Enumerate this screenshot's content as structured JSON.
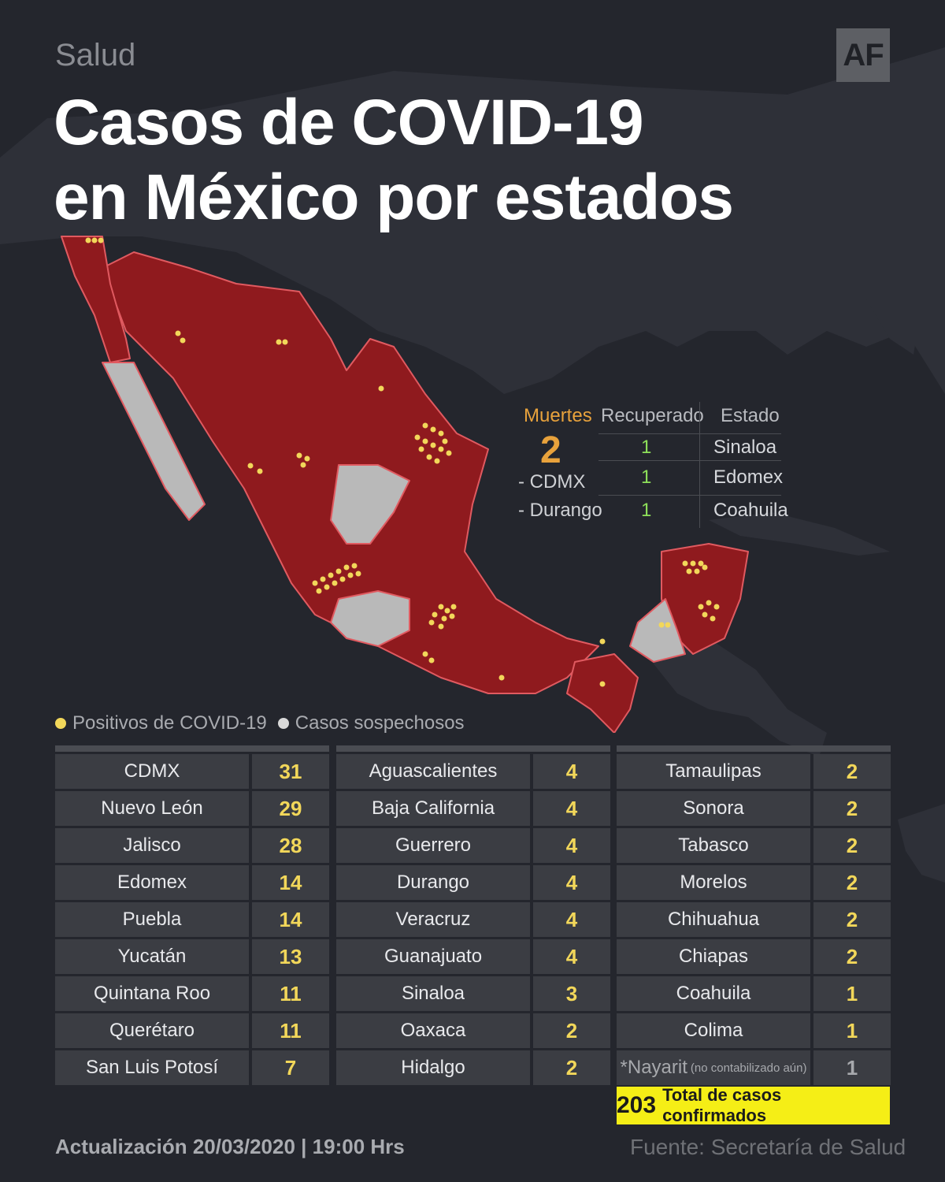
{
  "header": {
    "section": "Salud",
    "logo": "AF",
    "title_line1": "Casos de COVID-19",
    "title_line2": "en México por estados"
  },
  "colors": {
    "confirmed_state": "#8f1a1e",
    "suspected_state": "#b9b9b9",
    "positive_dot": "#f2d75a",
    "deaths_accent": "#e8a23c",
    "recovered": "#8ee05a",
    "total_highlight": "#f5ee16"
  },
  "deaths_panel": {
    "deaths_label": "Muertes",
    "deaths_count": "2",
    "recovered_label": "Recuperado",
    "state_label": "Estado",
    "death_places": [
      "- CDMX",
      "- Durango"
    ],
    "recovered_rows": [
      {
        "count": "1",
        "state": "Sinaloa"
      },
      {
        "count": "1",
        "state": "Edomex"
      },
      {
        "count": "1",
        "state": "Coahuila"
      }
    ]
  },
  "legend": {
    "positive": "Positivos de COVID-19",
    "suspected": "Casos sospechosos"
  },
  "table": {
    "col1": [
      {
        "state": "CDMX",
        "cases": "31"
      },
      {
        "state": "Nuevo León",
        "cases": "29"
      },
      {
        "state": "Jalisco",
        "cases": "28"
      },
      {
        "state": "Edomex",
        "cases": "14"
      },
      {
        "state": "Puebla",
        "cases": "14"
      },
      {
        "state": "Yucatán",
        "cases": "13"
      },
      {
        "state": "Quintana Roo",
        "cases": "11"
      },
      {
        "state": "Querétaro",
        "cases": "11"
      },
      {
        "state": "San Luis Potosí",
        "cases": "7"
      }
    ],
    "col2": [
      {
        "state": "Aguascalientes",
        "cases": "4"
      },
      {
        "state": "Baja California",
        "cases": "4"
      },
      {
        "state": "Guerrero",
        "cases": "4"
      },
      {
        "state": "Durango",
        "cases": "4"
      },
      {
        "state": "Veracruz",
        "cases": "4"
      },
      {
        "state": "Guanajuato",
        "cases": "4"
      },
      {
        "state": "Sinaloa",
        "cases": "3"
      },
      {
        "state": "Oaxaca",
        "cases": "2"
      },
      {
        "state": "Hidalgo",
        "cases": "2"
      }
    ],
    "col3": [
      {
        "state": "Tamaulipas",
        "cases": "2"
      },
      {
        "state": "Sonora",
        "cases": "2"
      },
      {
        "state": "Tabasco",
        "cases": "2"
      },
      {
        "state": "Morelos",
        "cases": "2"
      },
      {
        "state": "Chihuahua",
        "cases": "2"
      },
      {
        "state": "Chiapas",
        "cases": "2"
      },
      {
        "state": "Coahuila",
        "cases": "1"
      },
      {
        "state": "Colima",
        "cases": "1"
      }
    ],
    "nayarit": {
      "state": "*Nayarit",
      "note": "(no contabilizado aún)",
      "cases": "1"
    }
  },
  "total": {
    "count": "203",
    "label": "Total de casos confirmados"
  },
  "footer": {
    "update": "Actualización 20/03/2020 | 19:00 Hrs",
    "source": "Fuente: Secretaría de Salud"
  }
}
